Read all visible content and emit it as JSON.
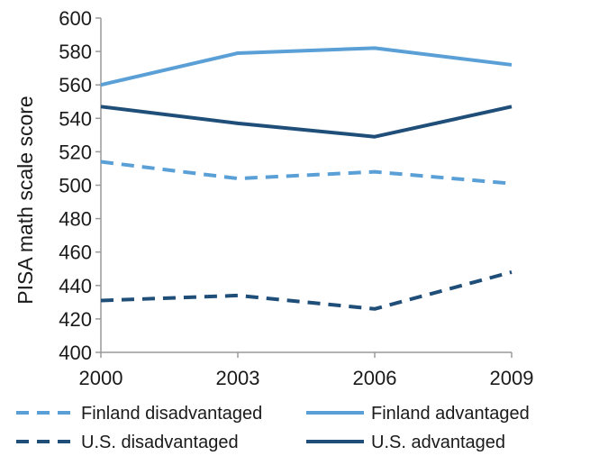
{
  "chart_data": {
    "type": "line",
    "xlabel": "",
    "ylabel": "PISA math scale score",
    "ylim": [
      400,
      600
    ],
    "yticks": [
      400,
      420,
      440,
      460,
      480,
      500,
      520,
      540,
      560,
      580,
      600
    ],
    "categories": [
      "2000",
      "2003",
      "2006",
      "2009"
    ],
    "grid": false,
    "legend_position": "bottom",
    "series": [
      {
        "name": "Finland disadvantaged",
        "values": [
          514,
          504,
          508,
          501
        ],
        "color": "#5aa0d6",
        "dash": "dashed"
      },
      {
        "name": "Finland advantaged",
        "values": [
          560,
          579,
          582,
          572
        ],
        "color": "#5aa0d6",
        "dash": "solid"
      },
      {
        "name": "U.S. disadvantaged",
        "values": [
          431,
          434,
          426,
          448
        ],
        "color": "#1f4e79",
        "dash": "dashed"
      },
      {
        "name": "U.S. advantaged",
        "values": [
          547,
          537,
          529,
          547
        ],
        "color": "#1f4e79",
        "dash": "solid"
      }
    ]
  }
}
